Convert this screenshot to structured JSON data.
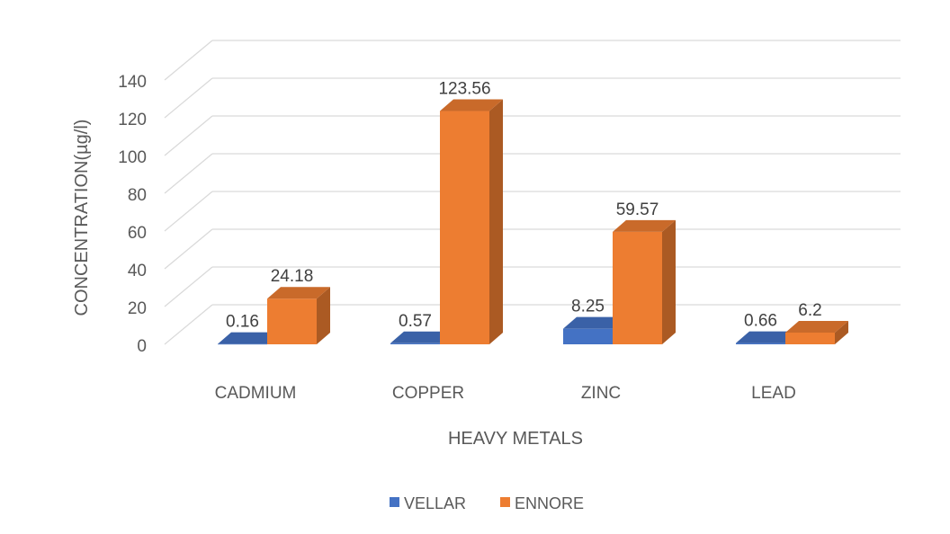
{
  "chart_data": {
    "type": "bar",
    "style": "3d-clustered-column",
    "categories": [
      "CADMIUM",
      "COPPER",
      "ZINC",
      "LEAD"
    ],
    "series": [
      {
        "name": "VELLAR",
        "color": "#4472C4",
        "values": [
          0.16,
          0.57,
          8.25,
          0.66
        ]
      },
      {
        "name": "ENNORE",
        "color": "#ED7D31",
        "values": [
          24.18,
          123.56,
          59.57,
          6.2
        ]
      }
    ],
    "data_labels": {
      "VELLAR": [
        "0.16",
        "0.57",
        "8.25",
        "0.66"
      ],
      "ENNORE": [
        "24.18",
        "123.56",
        "59.57",
        "6.2"
      ]
    },
    "y_ticks": [
      "0",
      "20",
      "40",
      "60",
      "80",
      "100",
      "120",
      "140"
    ],
    "ylim": [
      0,
      140
    ],
    "xlabel": "HEAVY METALS",
    "ylabel": "CONCENTRATION(µg/l)",
    "grid": true,
    "legend_position": "bottom"
  }
}
